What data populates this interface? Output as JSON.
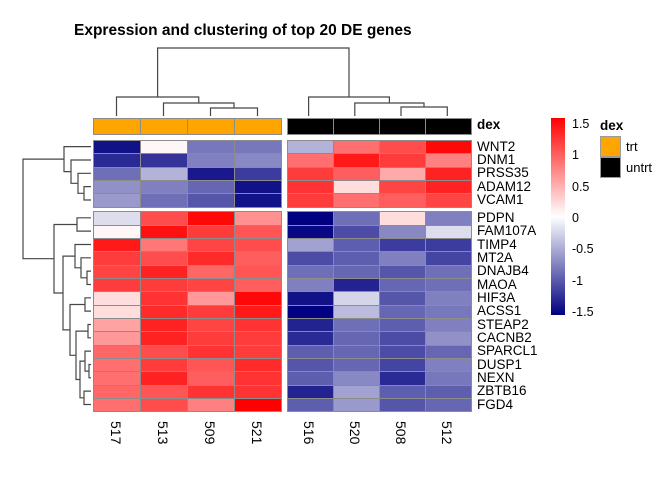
{
  "title": "Expression and clustering of top 20 DE genes",
  "chart_data": {
    "type": "heatmap",
    "title": "Expression and clustering of top 20 DE genes",
    "columns": [
      "517",
      "513",
      "509",
      "521",
      "516",
      "520",
      "508",
      "512"
    ],
    "rows": [
      "WNT2",
      "DNM1",
      "PRSS35",
      "ADAM12",
      "VCAM1",
      "PDPN",
      "FAM107A",
      "TIMP4",
      "MT2A",
      "DNAJB4",
      "MAOA",
      "HIF3A",
      "ACSS1",
      "STEAP2",
      "CACNB2",
      "SPARCL1",
      "DUSP1",
      "NEXN",
      "ZBTB16",
      "FGD4"
    ],
    "values": [
      [
        -1.4,
        0.05,
        -0.8,
        -0.8,
        -0.45,
        0.85,
        1.05,
        1.45
      ],
      [
        -1.25,
        -1.2,
        -0.75,
        -0.7,
        0.85,
        1.35,
        1.15,
        0.75
      ],
      [
        -0.85,
        -0.45,
        -1.35,
        -1.15,
        1.15,
        0.95,
        0.5,
        1.3
      ],
      [
        -0.65,
        -0.75,
        -0.9,
        -1.4,
        1.2,
        0.2,
        1.1,
        1.3
      ],
      [
        -0.6,
        -0.85,
        -1.0,
        -1.4,
        1.15,
        0.85,
        0.95,
        1.1
      ],
      [
        -0.2,
        1.05,
        1.45,
        0.65,
        -1.5,
        -0.85,
        0.2,
        -0.75
      ],
      [
        0.05,
        1.4,
        1.15,
        1.0,
        -1.45,
        -1.05,
        -0.7,
        -0.2
      ],
      [
        1.35,
        0.8,
        1.1,
        1.05,
        -0.55,
        -0.95,
        -1.15,
        -1.15
      ],
      [
        1.15,
        1.05,
        1.25,
        0.95,
        -1.05,
        -0.95,
        -0.75,
        -1.1
      ],
      [
        1.1,
        1.3,
        0.9,
        1.0,
        -0.85,
        -0.9,
        -1.0,
        -0.85
      ],
      [
        1.15,
        1.15,
        1.1,
        0.95,
        -0.75,
        -1.3,
        -0.9,
        -0.85
      ],
      [
        0.2,
        1.2,
        0.6,
        1.45,
        -1.4,
        -0.25,
        -1.0,
        -0.75
      ],
      [
        0.2,
        1.25,
        1.15,
        1.35,
        -1.5,
        -0.4,
        -0.9,
        -0.8
      ],
      [
        0.55,
        1.3,
        1.1,
        1.2,
        -1.3,
        -0.85,
        -0.95,
        -0.75
      ],
      [
        0.6,
        1.3,
        1.15,
        1.15,
        -1.25,
        -0.9,
        -1.05,
        -0.65
      ],
      [
        0.9,
        1.05,
        1.2,
        1.15,
        -0.95,
        -0.9,
        -1.05,
        -0.9
      ],
      [
        0.85,
        1.15,
        1.0,
        1.25,
        -1.0,
        -0.9,
        -1.1,
        -0.75
      ],
      [
        0.85,
        1.3,
        0.95,
        1.2,
        -0.95,
        -0.7,
        -1.25,
        -0.8
      ],
      [
        0.9,
        1.0,
        1.2,
        1.2,
        -1.3,
        -0.55,
        -0.95,
        -0.95
      ],
      [
        0.85,
        1.05,
        0.75,
        1.5,
        -0.95,
        -0.6,
        -1.0,
        -0.9
      ]
    ],
    "value_range": [
      -1.5,
      1.5
    ],
    "colormap": {
      "low": "#000080",
      "mid": "#FFFFFF",
      "high": "#FF0000"
    },
    "grid_line_color": "#8c8c8c",
    "row_blocks": [
      5,
      15
    ],
    "col_blocks": [
      4,
      4
    ],
    "column_annotation": {
      "name": "dex",
      "values": [
        "trt",
        "trt",
        "trt",
        "trt",
        "untrt",
        "untrt",
        "untrt",
        "untrt"
      ],
      "colors": {
        "trt": "#FFA500",
        "untrt": "#000000"
      }
    },
    "colorbar_ticks": [
      "1.5",
      "1",
      "0.5",
      "0",
      "-0.5",
      "-1",
      "-1.5"
    ],
    "legend": {
      "title": "dex",
      "entries": [
        {
          "label": "trt",
          "color": "#FFA500"
        },
        {
          "label": "untrt",
          "color": "#000000"
        }
      ]
    },
    "dendrograms": {
      "column": [
        "M116.5,116 V97 H198.75 V103",
        "M163.5,116 V103 H234 V108",
        "M210.5,116 V108 H257.5 V116",
        "M308.6,116 V97 H389.4 V103",
        "M354.8,116 V103 H424 V107",
        "M401,116 V107 H447.3 V116",
        "M157.6,97 V48 H349 V97"
      ],
      "row": [
        "M91,146.6 H64 V171.6 H71",
        "M91,160 H71 V183.3 H78",
        "M91,173.3 H78 V193.3 H84",
        "M91,186.6 H84 V200 H91",
        "M91,217.8 H77 V231.1 H91",
        "M91,244.5 H75 V267.8 H81",
        "M91,257.8 H81 V277.8 H87",
        "M91,271.1 H87 V284.5 H91",
        "M91,297.8 H85 V311.1 H91",
        "M91,324.5 H88 V337.8 H91",
        "M91,351.1 H85 V371.1 H89",
        "M91,364.5 H89 V377.8 H91",
        "M91,391.1 H84 V404.5 H91",
        "M85,361.1 H80 V397.8 H84",
        "M88,331.1 H76 V379.5 H80",
        "M85,304.5 H70 V355.3 H76",
        "M75,256.1 H63 V329.9 H70",
        "M77,224.5 H54 V293 H63",
        "M64,159.1 H23 V258.7 H54"
      ]
    }
  }
}
